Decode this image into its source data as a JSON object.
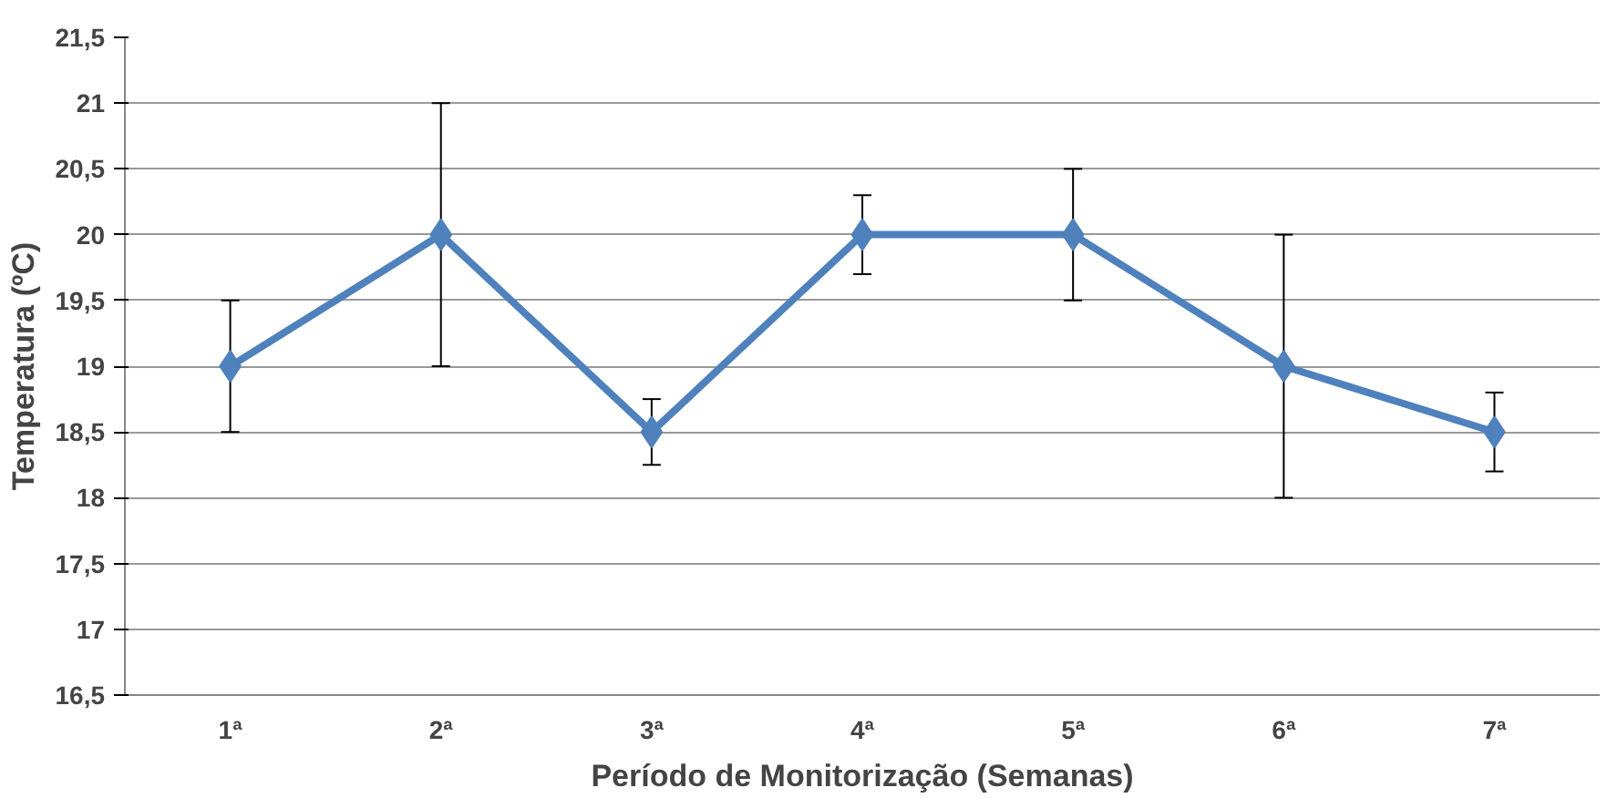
{
  "chart_data": {
    "type": "line",
    "xlabel": "Período de Monitorização (Semanas)",
    "ylabel": "Temperatura (ºC)",
    "categories": [
      "1ª",
      "2ª",
      "3ª",
      "4ª",
      "5ª",
      "6ª",
      "7ª"
    ],
    "series": [
      {
        "color": "#4f81bd",
        "values": [
          19,
          20,
          18.5,
          20,
          20,
          19,
          18.5
        ],
        "errors": [
          0.5,
          1,
          0.25,
          0.3,
          0.5,
          1,
          0.3
        ]
      }
    ],
    "ylim": [
      16.5,
      21.5
    ],
    "yticks": [
      {
        "value": 16.5,
        "label": "16,5"
      },
      17,
      {
        "value": 17.5,
        "label": "17,5"
      },
      18,
      {
        "value": 18.5,
        "label": "18,5"
      },
      19,
      {
        "value": 19.5,
        "label": "19,5"
      },
      20,
      {
        "value": 20.5,
        "label": "20,5"
      },
      21,
      {
        "value": 21.5,
        "label": "21,5"
      }
    ],
    "grid": "y",
    "marker": "diamond",
    "line_style": "solid"
  }
}
